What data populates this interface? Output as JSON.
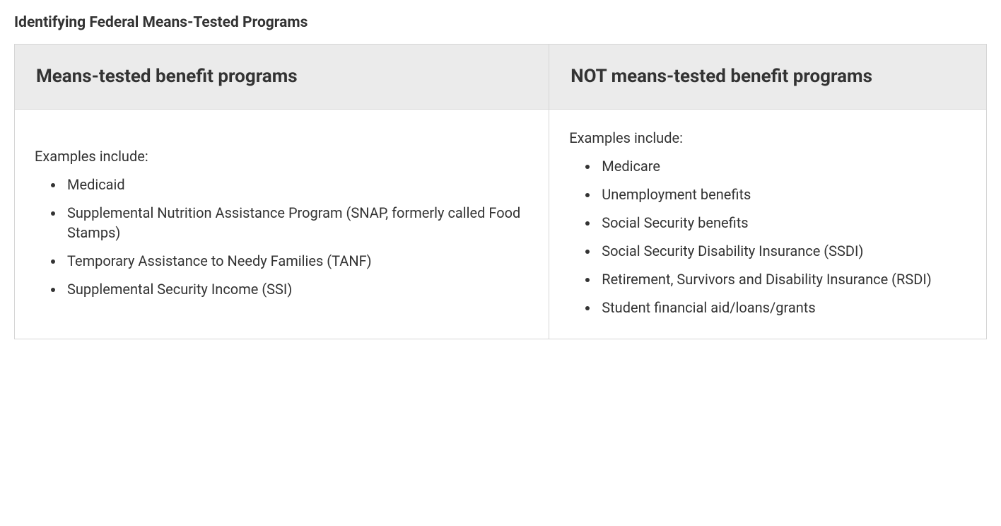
{
  "title": "Identifying Federal Means-Tested Programs",
  "table": {
    "headers": {
      "left": "Means-tested benefit programs",
      "right": "NOT means-tested benefit programs"
    },
    "left": {
      "intro": "Examples include:",
      "items": [
        "Medicaid",
        "Supplemental Nutrition Assistance Program (SNAP, formerly called Food Stamps)",
        "Temporary Assistance to Needy Families (TANF)",
        "Supplemental Security Income (SSI)"
      ]
    },
    "right": {
      "intro": "Examples include:",
      "items": [
        "Medicare",
        "Unemployment benefits",
        "Social Security benefits",
        "Social Security Disability Insurance (SSDI)",
        "Retirement, Survivors and Disability Insurance (RSDI)",
        "Student financial aid/loans/grants"
      ]
    }
  },
  "styling": {
    "header_bg": "#ebebeb",
    "border_color": "#d6d6d6",
    "text_color": "#333333",
    "title_fontsize": 21,
    "header_fontsize": 26,
    "body_fontsize": 20
  }
}
